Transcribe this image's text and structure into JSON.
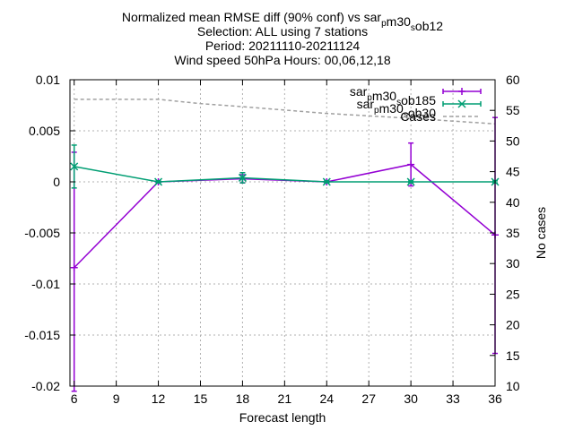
{
  "chart_data": {
    "type": "line",
    "title_lines": [
      "Normalized mean RMSE diff (90% conf) vs sar_{p}m30_{s}ob12",
      "Selection: ALL using     7 stations",
      "Period: 20211110-20211124",
      "Wind speed 50hPa   Hours: 00,06,12,18"
    ],
    "xlabel": "Forecast length",
    "ylabel": "",
    "y2label": "No cases",
    "xlim": [
      5.7,
      36
    ],
    "ylim": [
      -0.02,
      0.01
    ],
    "y2lim": [
      10,
      60
    ],
    "xticks": [
      6,
      9,
      12,
      15,
      18,
      21,
      24,
      27,
      30,
      33,
      36
    ],
    "yticks": [
      -0.02,
      -0.015,
      -0.01,
      -0.005,
      0,
      0.005,
      0.01
    ],
    "ytick_labels": [
      "-0.02",
      "-0.015",
      "-0.01",
      "-0.005",
      "0",
      "0.005",
      "0.01"
    ],
    "y2ticks": [
      10,
      15,
      20,
      25,
      30,
      35,
      40,
      45,
      50,
      55,
      60
    ],
    "grid": true,
    "legend_position": "top-right",
    "series": [
      {
        "name": "sar_{p}m30_{s}ob185",
        "color": "#9400d3",
        "marker": "plus",
        "x": [
          6,
          12,
          18,
          24,
          30,
          36
        ],
        "y": [
          -0.0084,
          0.0,
          0.0003,
          0.0,
          0.0017,
          -0.0052
        ],
        "err_low": [
          -0.0205,
          -0.0001,
          -0.0001,
          -0.0001,
          -0.0004,
          -0.0168
        ],
        "err_high": [
          0.0029,
          0.0001,
          0.0007,
          0.0001,
          0.0038,
          0.0063
        ]
      },
      {
        "name": "sar_{p}m30_{s}ob30",
        "color": "#009e73",
        "marker": "cross",
        "x": [
          6,
          12,
          18,
          24,
          30,
          36
        ],
        "y": [
          0.0015,
          0.0,
          0.0004,
          0.0,
          0.0,
          0.0
        ],
        "err_low": [
          -0.0006,
          -0.0001,
          -0.0001,
          -0.0001,
          -0.0001,
          -0.0001
        ],
        "err_high": [
          0.0036,
          0.0001,
          0.0009,
          0.0001,
          0.0001,
          0.0001
        ]
      },
      {
        "name": "Cases",
        "color": "#a0a0a0",
        "axis": "y2",
        "style": "dashed",
        "x": [
          6,
          12,
          15,
          18,
          24,
          30,
          36
        ],
        "y": [
          56.8,
          56.8,
          56.1,
          55.6,
          54.5,
          53.7,
          52.8
        ]
      }
    ]
  }
}
